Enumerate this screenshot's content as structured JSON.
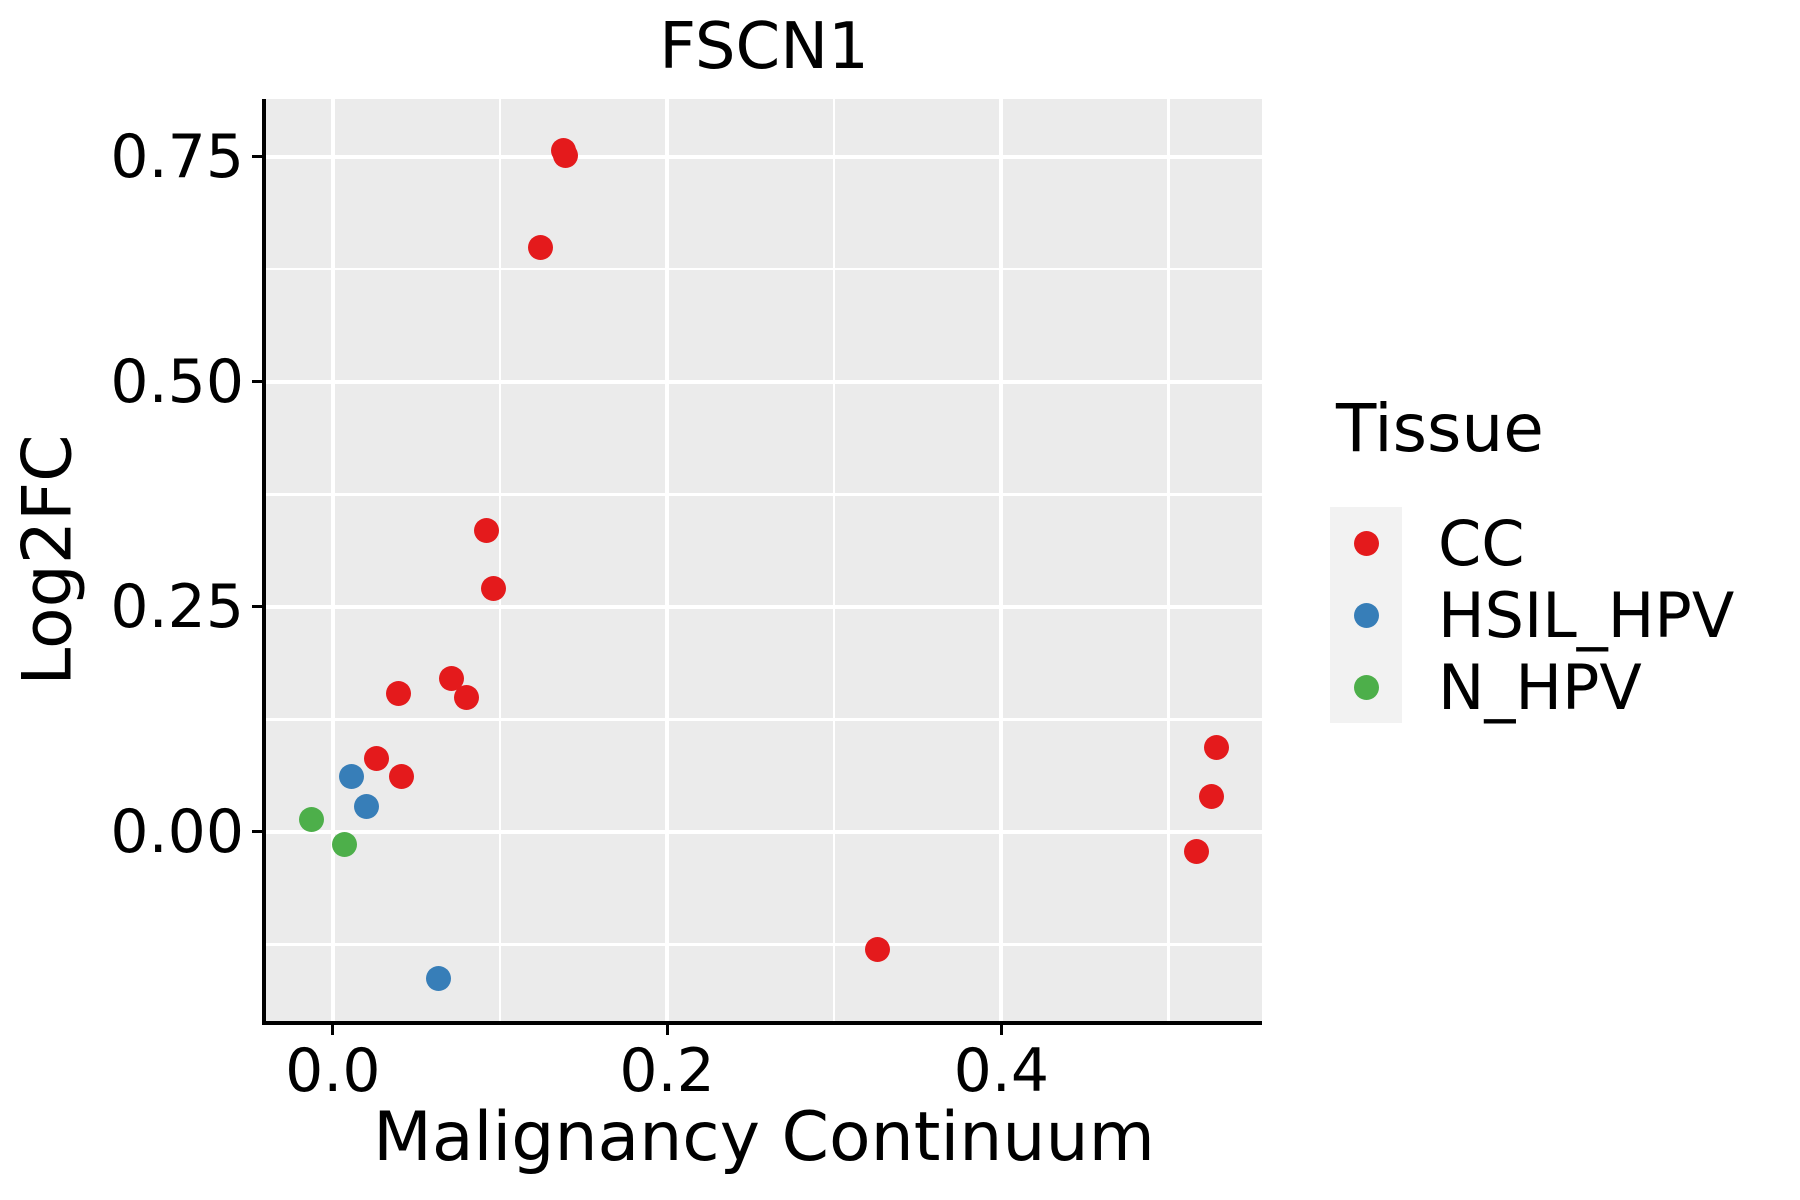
{
  "chart_data": {
    "type": "scatter",
    "title": "FSCN1",
    "xlabel": "Malignancy Continuum",
    "ylabel": "Log2FC",
    "xlim": [
      -0.04,
      0.556
    ],
    "ylim": [
      -0.21,
      0.814
    ],
    "grid": true,
    "panel_background": "#EBEBEB",
    "gridline_color": "#FFFFFF",
    "legend_position": "right",
    "x_major_ticks": [
      0.0,
      0.2,
      0.4
    ],
    "x_tick_labels": [
      "0.0",
      "0.2",
      "0.4"
    ],
    "x_minor_ticks": [
      0.1,
      0.3,
      0.5
    ],
    "y_major_ticks": [
      0.0,
      0.25,
      0.5,
      0.75
    ],
    "y_tick_labels": [
      "0.00",
      "0.25",
      "0.50",
      "0.75"
    ],
    "y_minor_ticks": [
      -0.125,
      0.125,
      0.375,
      0.625
    ],
    "series": [
      {
        "name": "CC",
        "color": "#E41A1C",
        "points": [
          [
            0.138,
            0.757
          ],
          [
            0.139,
            0.751
          ],
          [
            0.124,
            0.649
          ],
          [
            0.092,
            0.335
          ],
          [
            0.096,
            0.27
          ],
          [
            0.071,
            0.17
          ],
          [
            0.039,
            0.154
          ],
          [
            0.08,
            0.149
          ],
          [
            0.026,
            0.082
          ],
          [
            0.041,
            0.061
          ],
          [
            0.326,
            -0.131
          ],
          [
            0.529,
            0.094
          ],
          [
            0.526,
            0.039
          ],
          [
            0.517,
            -0.022
          ]
        ]
      },
      {
        "name": "HSIL_HPV",
        "color": "#377EB8",
        "points": [
          [
            0.011,
            0.061
          ],
          [
            0.02,
            0.028
          ],
          [
            0.063,
            -0.163
          ]
        ]
      },
      {
        "name": "N_HPV",
        "color": "#4DAF4A",
        "points": [
          [
            -0.013,
            0.014
          ],
          [
            0.007,
            -0.014
          ]
        ]
      }
    ]
  },
  "legend": {
    "title": "Tissue",
    "items": [
      {
        "label": "CC",
        "color": "#E41A1C"
      },
      {
        "label": "HSIL_HPV",
        "color": "#377EB8"
      },
      {
        "label": "N_HPV",
        "color": "#4DAF4A"
      }
    ]
  }
}
